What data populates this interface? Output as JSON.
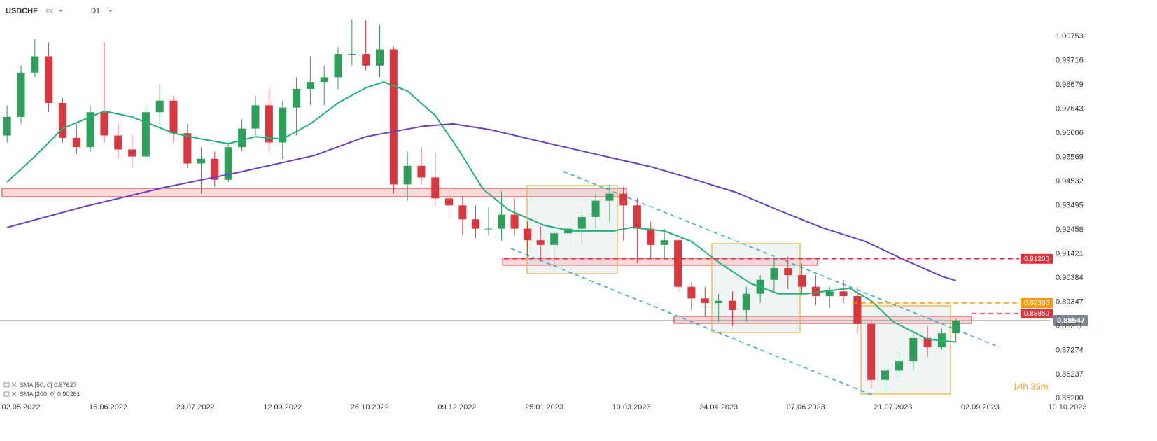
{
  "header": {
    "symbol": "USDCHF",
    "market": "FX",
    "interval": "D1"
  },
  "timer": "14h 35m",
  "chart_data": {
    "type": "candlestick",
    "x": [
      "2022-04-25",
      "2022-05-02",
      "2022-05-09",
      "2022-05-16",
      "2022-05-23",
      "2022-05-30",
      "2022-06-06",
      "2022-06-13",
      "2022-06-20",
      "2022-06-27",
      "2022-07-04",
      "2022-07-11",
      "2022-07-18",
      "2022-07-25",
      "2022-08-01",
      "2022-08-08",
      "2022-08-15",
      "2022-08-22",
      "2022-08-29",
      "2022-09-05",
      "2022-09-12",
      "2022-09-19",
      "2022-09-26",
      "2022-10-03",
      "2022-10-10",
      "2022-10-17",
      "2022-10-24",
      "2022-10-31",
      "2022-11-07",
      "2022-11-14",
      "2022-11-21",
      "2022-11-28",
      "2022-12-05",
      "2022-12-12",
      "2022-12-19",
      "2022-12-26",
      "2023-01-02",
      "2023-01-09",
      "2023-01-16",
      "2023-01-23",
      "2023-01-30",
      "2023-02-06",
      "2023-02-13",
      "2023-02-20",
      "2023-02-27",
      "2023-03-06",
      "2023-03-13",
      "2023-03-20",
      "2023-03-27",
      "2023-04-03",
      "2023-04-10",
      "2023-04-17",
      "2023-04-24",
      "2023-05-01",
      "2023-05-08",
      "2023-05-15",
      "2023-05-22",
      "2023-05-29",
      "2023-06-05",
      "2023-06-12",
      "2023-06-19",
      "2023-06-26",
      "2023-07-03",
      "2023-07-10",
      "2023-07-17",
      "2023-07-24",
      "2023-07-31",
      "2023-08-07",
      "2023-08-14",
      "2023-08-21"
    ],
    "open": [
      0.965,
      0.973,
      0.992,
      0.999,
      0.979,
      0.964,
      0.96,
      0.975,
      0.965,
      0.959,
      0.956,
      0.975,
      0.98,
      0.966,
      0.953,
      0.955,
      0.946,
      0.96,
      0.968,
      0.978,
      0.962,
      0.977,
      0.985,
      0.988,
      0.99,
      1.0,
      1.0,
      0.995,
      1.002,
      0.944,
      0.952,
      0.947,
      0.938,
      0.935,
      0.929,
      0.925,
      0.925,
      0.931,
      0.925,
      0.92,
      0.918,
      0.923,
      0.925,
      0.93,
      0.937,
      0.94,
      0.935,
      0.925,
      0.918,
      0.92,
      0.9,
      0.895,
      0.893,
      0.894,
      0.89,
      0.897,
      0.903,
      0.908,
      0.905,
      0.9,
      0.896,
      0.898,
      0.896,
      0.884,
      0.86,
      0.864,
      0.868,
      0.878,
      0.874,
      0.88
    ],
    "high": [
      0.978,
      0.995,
      1.0064,
      1.005,
      0.981,
      0.97,
      0.978,
      1.005,
      0.97,
      0.965,
      0.978,
      0.987,
      0.982,
      0.97,
      0.96,
      0.958,
      0.962,
      0.972,
      0.982,
      0.985,
      0.98,
      0.99,
      0.999,
      0.995,
      1.003,
      1.015,
      1.0145,
      1.0125,
      1.003,
      0.958,
      0.96,
      0.958,
      0.942,
      0.939,
      0.935,
      0.934,
      0.941,
      0.938,
      0.928,
      0.926,
      0.924,
      0.93,
      0.932,
      0.94,
      0.944,
      0.943,
      0.938,
      0.928,
      0.925,
      0.922,
      0.902,
      0.9,
      0.897,
      0.898,
      0.9,
      0.905,
      0.912,
      0.913,
      0.91,
      0.905,
      0.9,
      0.903,
      0.9,
      0.886,
      0.866,
      0.872,
      0.88,
      0.883,
      0.882,
      0.8865
    ],
    "low": [
      0.962,
      0.97,
      0.99,
      0.975,
      0.962,
      0.957,
      0.958,
      0.962,
      0.955,
      0.951,
      0.955,
      0.97,
      0.962,
      0.951,
      0.94,
      0.943,
      0.945,
      0.958,
      0.965,
      0.958,
      0.955,
      0.965,
      0.978,
      0.978,
      0.985,
      0.995,
      0.993,
      0.99,
      0.94,
      0.937,
      0.944,
      0.935,
      0.93,
      0.922,
      0.921,
      0.922,
      0.92,
      0.922,
      0.913,
      0.911,
      0.907,
      0.915,
      0.918,
      0.925,
      0.928,
      0.92,
      0.91,
      0.912,
      0.912,
      0.898,
      0.89,
      0.887,
      0.885,
      0.883,
      0.885,
      0.893,
      0.898,
      0.899,
      0.897,
      0.892,
      0.891,
      0.893,
      0.88,
      0.856,
      0.855,
      0.861,
      0.864,
      0.87,
      0.873,
      0.876
    ],
    "close": [
      0.973,
      0.992,
      0.999,
      0.979,
      0.964,
      0.96,
      0.975,
      0.965,
      0.959,
      0.956,
      0.975,
      0.98,
      0.966,
      0.953,
      0.955,
      0.946,
      0.96,
      0.968,
      0.978,
      0.962,
      0.977,
      0.985,
      0.988,
      0.99,
      1.0,
      1.0,
      0.995,
      1.002,
      0.944,
      0.952,
      0.947,
      0.938,
      0.935,
      0.929,
      0.925,
      0.925,
      0.931,
      0.925,
      0.92,
      0.918,
      0.923,
      0.925,
      0.93,
      0.937,
      0.94,
      0.935,
      0.925,
      0.918,
      0.92,
      0.9,
      0.895,
      0.893,
      0.894,
      0.89,
      0.897,
      0.903,
      0.908,
      0.905,
      0.9,
      0.896,
      0.898,
      0.896,
      0.884,
      0.86,
      0.864,
      0.868,
      0.878,
      0.874,
      0.88,
      0.88547
    ],
    "up_color": "#2e9e5b",
    "down_color": "#d9363e",
    "series": [
      {
        "name": "SMA [50, 0]",
        "color": "#20b27a",
        "x": [
          "2022-04-25",
          "2022-05-09",
          "2022-05-23",
          "2022-06-13",
          "2022-06-27",
          "2022-07-18",
          "2022-08-01",
          "2022-08-15",
          "2022-08-29",
          "2022-09-12",
          "2022-09-26",
          "2022-10-10",
          "2022-10-24",
          "2022-11-02",
          "2022-11-14",
          "2022-11-28",
          "2022-12-09",
          "2022-12-23",
          "2023-01-06",
          "2023-01-25",
          "2023-02-08",
          "2023-03-01",
          "2023-03-10",
          "2023-03-27",
          "2023-04-10",
          "2023-04-24",
          "2023-05-10",
          "2023-05-24",
          "2023-06-07",
          "2023-06-29",
          "2023-07-10",
          "2023-07-21",
          "2023-08-07",
          "2023-08-21"
        ],
        "values": [
          0.945,
          0.956,
          0.968,
          0.9755,
          0.973,
          0.966,
          0.9635,
          0.9615,
          0.9645,
          0.9635,
          0.97,
          0.979,
          0.9855,
          0.988,
          0.9841,
          0.9736,
          0.96,
          0.942,
          0.933,
          0.9264,
          0.924,
          0.924,
          0.9255,
          0.924,
          0.9195,
          0.9105,
          0.9015,
          0.897,
          0.897,
          0.8994,
          0.894,
          0.885,
          0.8775,
          0.87627
        ]
      },
      {
        "name": "SMA [200, 0]",
        "color": "#6a3fc4",
        "x": [
          "2022-04-25",
          "2022-06-03",
          "2022-07-13",
          "2022-08-22",
          "2022-09-28",
          "2022-10-24",
          "2022-11-22",
          "2022-12-07",
          "2022-12-27",
          "2023-01-20",
          "2023-02-20",
          "2023-03-20",
          "2023-04-10",
          "2023-05-03",
          "2023-05-24",
          "2023-06-15",
          "2023-07-07",
          "2023-07-27",
          "2023-08-14",
          "2023-08-21"
        ],
        "values": [
          0.9255,
          0.9345,
          0.9426,
          0.9495,
          0.9564,
          0.9645,
          0.969,
          0.97,
          0.9675,
          0.963,
          0.957,
          0.9516,
          0.9465,
          0.9405,
          0.933,
          0.9255,
          0.9195,
          0.9114,
          0.9045,
          0.90261
        ]
      }
    ],
    "levels": [
      {
        "value": 0.912,
        "label": "0.91200",
        "color": "#e0323a"
      },
      {
        "value": 0.893,
        "label": "0.89300",
        "color": "#f39c12"
      },
      {
        "value": 0.8885,
        "label": "0.88850",
        "color": "#e0323a"
      }
    ],
    "last_price": {
      "value": 0.88547,
      "label": "0.88547",
      "color": "#7d8790"
    },
    "ylim": [
      0.8512,
      1.0232
    ],
    "yticks": [
      1.00753,
      0.99716,
      0.98679,
      0.97643,
      0.96606,
      0.95569,
      0.94532,
      0.93495,
      0.92458,
      0.91421,
      0.90384,
      0.89347,
      {
        "value": 0.8831,
        "label": "0.88311"
      },
      0.87274,
      0.86237,
      {
        "value": 0.852,
        "label": "0.85200"
      }
    ],
    "xticks": [
      "02.05.2022",
      "15.06.2022",
      "29.07.2022",
      "12.09.2022",
      "26.10.2022",
      "09.12.2022",
      "25.01.2023",
      "10.03.2023",
      "24.04.2023",
      "07.06.2023",
      "21.07.2023",
      "02.09.2023",
      "10.10.2023"
    ]
  }
}
